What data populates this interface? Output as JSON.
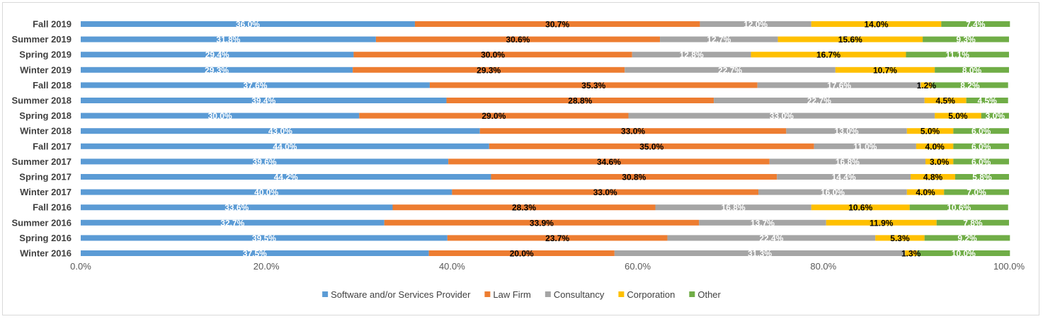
{
  "chart_data": {
    "type": "bar",
    "orientation": "horizontal",
    "stacked": "percent",
    "categories": [
      "Fall 2019",
      "Summer 2019",
      "Spring 2019",
      "Winter 2019",
      "Fall 2018",
      "Summer 2018",
      "Spring 2018",
      "Winter 2018",
      "Fall 2017",
      "Summer 2017",
      "Spring 2017",
      "Winter 2017",
      "Fall 2016",
      "Summer 2016",
      "Spring 2016",
      "Winter 2016"
    ],
    "series": [
      {
        "name": "Software and/or Services Provider",
        "color": "#5b9bd5",
        "label_color": "#ffffff",
        "values": [
          36.0,
          31.8,
          29.4,
          29.3,
          37.6,
          39.4,
          30.0,
          43.0,
          44.0,
          39.6,
          44.2,
          40.0,
          33.6,
          32.7,
          39.5,
          37.5
        ]
      },
      {
        "name": "Law Firm",
        "color": "#ed7d31",
        "label_color": "#000000",
        "values": [
          30.7,
          30.6,
          30.0,
          29.3,
          35.3,
          28.8,
          29.0,
          33.0,
          35.0,
          34.6,
          30.8,
          33.0,
          28.3,
          33.9,
          23.7,
          20.0
        ]
      },
      {
        "name": "Consultancy",
        "color": "#a5a5a5",
        "label_color": "#ffffff",
        "values": [
          12.0,
          12.7,
          12.8,
          22.7,
          17.6,
          22.7,
          33.0,
          13.0,
          11.0,
          16.8,
          14.4,
          16.0,
          16.8,
          13.7,
          22.4,
          31.3
        ]
      },
      {
        "name": "Corporation",
        "color": "#ffc000",
        "label_color": "#000000",
        "values": [
          14.0,
          15.6,
          16.7,
          10.7,
          1.2,
          4.5,
          5.0,
          5.0,
          4.0,
          3.0,
          4.8,
          4.0,
          10.6,
          11.9,
          5.3,
          1.3
        ]
      },
      {
        "name": "Other",
        "color": "#70ad47",
        "label_color": "#ffffff",
        "values": [
          7.4,
          9.3,
          11.1,
          8.0,
          8.2,
          4.5,
          3.0,
          6.0,
          6.0,
          6.0,
          5.8,
          7.0,
          10.6,
          7.8,
          9.2,
          10.0
        ]
      }
    ],
    "x_ticks": [
      "0.0%",
      "20.0%",
      "40.0%",
      "60.0%",
      "80.0%",
      "100.0%"
    ],
    "xlim": [
      0,
      100
    ],
    "title": "",
    "xlabel": "",
    "ylabel": "",
    "legend_position": "bottom",
    "grid": false
  }
}
